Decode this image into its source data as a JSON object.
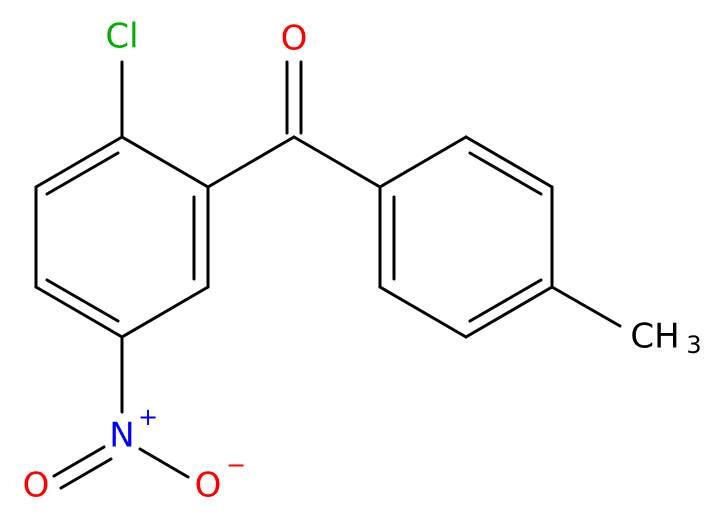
{
  "atoms": [
    {
      "label": "Cl"
    },
    {
      "label": "O"
    },
    {
      "label": "N",
      "charge": "+"
    },
    {
      "label": "O"
    },
    {
      "label": "O",
      "charge": "−"
    },
    {
      "label": "CH",
      "subscript": "3"
    }
  ]
}
